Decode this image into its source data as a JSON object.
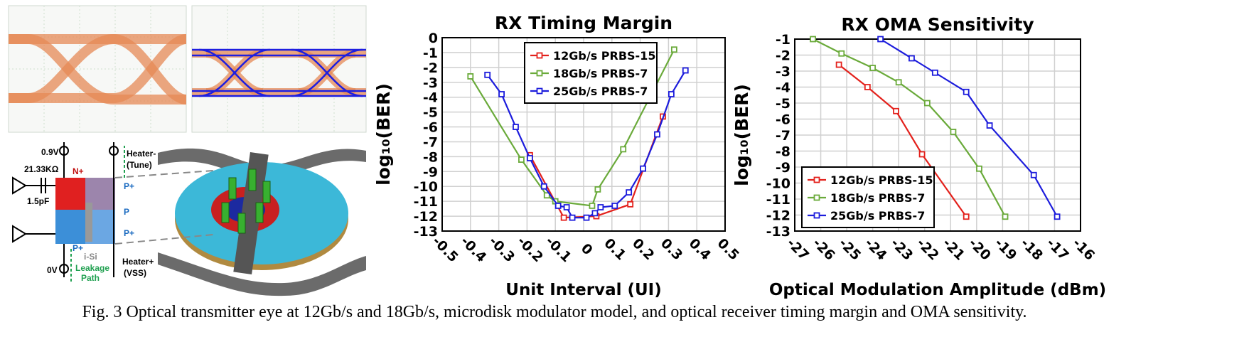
{
  "caption": "Fig. 3 Optical transmitter eye at 12Gb/s and 18Gb/s, microdisk modulator model, and optical receiver timing margin and OMA sensitivity.",
  "diagram": {
    "labels": [
      "0.9V",
      "21.33KΩ",
      "N+",
      "1.5pF",
      "P+",
      "P",
      "P+",
      "P+",
      "i-Si",
      "Leakage",
      "Path",
      "0V",
      "Heater-",
      "(Tune)",
      "Heater+",
      "(VSS)"
    ]
  },
  "chart_data": [
    {
      "type": "line",
      "title": "RX Timing Margin",
      "x_label": "Unit Interval (UI)",
      "y_label": "log₁₀(BER)",
      "series": [
        {
          "name": "12Gb/s PRBS-15",
          "color": "#e3211c",
          "x": [
            -0.19,
            -0.07,
            0.045,
            0.165,
            0.28
          ],
          "values": [
            -7.9,
            -12.1,
            -12,
            -11.2,
            -5.3
          ]
        },
        {
          "name": "18Gb/s PRBS-7",
          "color": "#6aaa3a",
          "x": [
            -0.4,
            -0.22,
            -0.13,
            -0.1,
            0.03,
            0.05,
            0.14,
            0.32
          ],
          "values": [
            -2.6,
            -8.2,
            -10.6,
            -11,
            -11.3,
            -10.2,
            -7.5,
            -0.8
          ]
        },
        {
          "name": "25Gb/s PRBS-7",
          "color": "#1c1cdc",
          "x": [
            -0.34,
            -0.29,
            -0.24,
            -0.19,
            -0.14,
            -0.09,
            -0.06,
            -0.04,
            0.01,
            0.04,
            0.06,
            0.11,
            0.16,
            0.21,
            0.26,
            0.31,
            0.36
          ],
          "values": [
            -2.5,
            -3.8,
            -6,
            -8.1,
            -10,
            -11.3,
            -11.4,
            -12.1,
            -12.1,
            -11.8,
            -11.4,
            -11.3,
            -10.4,
            -8.8,
            -6.5,
            -3.8,
            -2.2
          ]
        }
      ],
      "xlim": [
        -0.5,
        0.5
      ],
      "xticks": [
        -0.5,
        -0.4,
        -0.3,
        -0.2,
        -0.1,
        0,
        0.1,
        0.2,
        0.3,
        0.4,
        0.5
      ],
      "ylim": [
        -13,
        0
      ],
      "yticks": [
        0,
        -1,
        -2,
        -3,
        -4,
        -5,
        -6,
        -7,
        -8,
        -9,
        -10,
        -11,
        -12,
        -13
      ],
      "grid": true,
      "legend": "upper center"
    },
    {
      "type": "line",
      "title": "RX OMA Sensitivity",
      "x_label": "Optical Modulation Amplitude (dBm)",
      "y_label": "log₁₀(BER)",
      "series": [
        {
          "name": "12Gb/s PRBS-15",
          "color": "#e3211c",
          "x": [
            -25.3,
            -24.2,
            -23.1,
            -22.1,
            -20.4
          ],
          "values": [
            -2.6,
            -4,
            -5.5,
            -8.2,
            -12.1
          ]
        },
        {
          "name": "18Gb/s PRBS-7",
          "color": "#6aaa3a",
          "x": [
            -26.3,
            -25.2,
            -24,
            -23,
            -21.9,
            -20.9,
            -19.9,
            -18.9
          ],
          "values": [
            -1,
            -1.9,
            -2.8,
            -3.7,
            -5,
            -6.8,
            -9.1,
            -12.1
          ]
        },
        {
          "name": "25Gb/s PRBS-7",
          "color": "#1c1cdc",
          "x": [
            -23.7,
            -22.5,
            -21.6,
            -20.4,
            -19.5,
            -17.8,
            -16.9
          ],
          "values": [
            -1,
            -2.2,
            -3.1,
            -4.3,
            -6.4,
            -9.5,
            -12.1
          ]
        }
      ],
      "xlim": [
        -27,
        -16
      ],
      "xticks": [
        -27,
        -26,
        -25,
        -24,
        -23,
        -22,
        -21,
        -20,
        -19,
        -18,
        -17,
        -16
      ],
      "ylim": [
        -13,
        -1
      ],
      "yticks": [
        -1,
        -2,
        -3,
        -4,
        -5,
        -6,
        -7,
        -8,
        -9,
        -10,
        -11,
        -12,
        -13
      ],
      "grid": true,
      "legend": "lower left"
    }
  ]
}
